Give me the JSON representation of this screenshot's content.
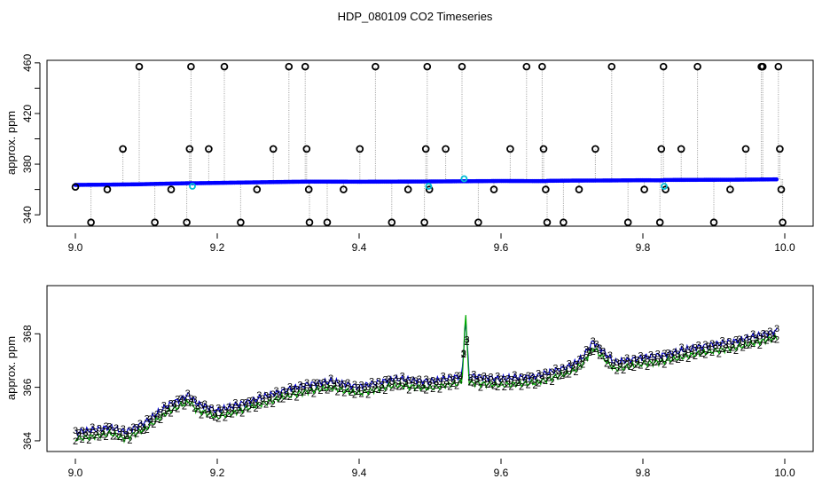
{
  "figure": {
    "title": "HDP_080109  CO2 Timeseries"
  },
  "chart_data": [
    {
      "type": "scatter",
      "panel": "top",
      "xlabel": "",
      "ylabel": "approx. ppm",
      "xlim": [
        8.96,
        10.04
      ],
      "ylim": [
        331,
        462
      ],
      "xticks": [
        9.0,
        9.2,
        9.4,
        9.6,
        9.8,
        10.0
      ],
      "xticklabels": [
        "9.0",
        "9.2",
        "9.4",
        "9.6",
        "9.8",
        "10.0"
      ],
      "yticks": [
        340,
        360,
        380,
        400,
        420,
        440,
        460
      ],
      "yticklabels": [
        "340",
        "",
        "380",
        "",
        "420",
        "",
        "460"
      ],
      "grid": false,
      "base_series": {
        "name": "",
        "color": "#0000ff",
        "marker": "dot",
        "segments": [
          {
            "x": [
              9.0,
              9.045,
              9.09,
              9.13,
              9.155,
              9.163
            ],
            "y": [
              363.6,
              363.8,
              364.1,
              364.6,
              364.9,
              365.0
            ]
          },
          {
            "x": [
              9.165,
              9.2,
              9.25,
              9.3,
              9.328
            ],
            "y": [
              364.9,
              365.2,
              365.6,
              366.0,
              366.2
            ]
          },
          {
            "x": [
              9.33,
              9.4,
              9.45,
              9.5,
              9.55,
              9.6,
              9.663
            ],
            "y": [
              366.2,
              366.1,
              366.2,
              366.3,
              366.5,
              366.7,
              366.6
            ]
          },
          {
            "x": [
              9.665,
              9.7,
              9.75,
              9.8,
              9.828
            ],
            "y": [
              366.8,
              367.0,
              367.1,
              367.3,
              367.2
            ]
          },
          {
            "x": [
              9.83,
              9.88,
              9.93,
              9.99
            ],
            "y": [
              367.5,
              367.6,
              367.7,
              368.0
            ]
          }
        ]
      },
      "highlight_points": {
        "color": "#00bcd4",
        "x": [
          9.165,
          9.498,
          9.548,
          9.83
        ],
        "y": [
          362.5,
          362.5,
          368.5,
          362.5
        ]
      },
      "outliers": {
        "marker": "circle",
        "color": "#000000",
        "x": [
          9.0,
          9.022,
          9.045,
          9.067,
          9.09,
          9.112,
          9.135,
          9.157,
          9.161,
          9.163,
          9.188,
          9.21,
          9.233,
          9.256,
          9.279,
          9.301,
          9.324,
          9.326,
          9.329,
          9.33,
          9.355,
          9.378,
          9.401,
          9.423,
          9.446,
          9.469,
          9.492,
          9.494,
          9.496,
          9.499,
          9.522,
          9.545,
          9.568,
          9.59,
          9.613,
          9.636,
          9.658,
          9.66,
          9.663,
          9.665,
          9.688,
          9.71,
          9.733,
          9.756,
          9.779,
          9.802,
          9.824,
          9.826,
          9.829,
          9.832,
          9.854,
          9.877,
          9.9,
          9.923,
          9.945,
          9.967,
          9.969,
          9.991,
          9.993,
          9.995,
          9.997
        ],
        "y": [
          362,
          334,
          360,
          392,
          457,
          334,
          360,
          334,
          392,
          457,
          392,
          457,
          334,
          360,
          392,
          457,
          457,
          392,
          360,
          334,
          334,
          360,
          392,
          457,
          334,
          360,
          334,
          392,
          457,
          360,
          392,
          457,
          334,
          360,
          392,
          457,
          457,
          392,
          360,
          334,
          334,
          360,
          392,
          457,
          334,
          360,
          334,
          392,
          457,
          360,
          392,
          457,
          334,
          360,
          392,
          457,
          457,
          457,
          392,
          360,
          334
        ]
      }
    },
    {
      "type": "line",
      "panel": "bottom",
      "xlabel": "",
      "ylabel": "approx. ppm",
      "xlim": [
        8.96,
        10.04
      ],
      "ylim": [
        363.6,
        369.8
      ],
      "xticks": [
        9.0,
        9.2,
        9.4,
        9.6,
        9.8,
        10.0
      ],
      "xticklabels": [
        "9.0",
        "9.2",
        "9.4",
        "9.6",
        "9.8",
        "10.0"
      ],
      "yticks": [
        364,
        366,
        368
      ],
      "yticklabels": [
        "364",
        "366",
        "368"
      ],
      "grid": false,
      "x_end": 9.99,
      "series": [
        {
          "name": "",
          "symbol": "3",
          "color": "#0000cc",
          "offset": 0.12,
          "knots": {
            "x": [
              9.0,
              9.03,
              9.05,
              9.07,
              9.1,
              9.13,
              9.16,
              9.17,
              9.2,
              9.25,
              9.3,
              9.33,
              9.36,
              9.4,
              9.45,
              9.5,
              9.545,
              9.55,
              9.555,
              9.6,
              9.65,
              9.7,
              9.715,
              9.73,
              9.76,
              9.8,
              9.83,
              9.88,
              9.93,
              9.99
            ],
            "y": [
              364.2,
              364.3,
              364.4,
              364.2,
              364.6,
              365.2,
              365.6,
              365.3,
              365.0,
              365.4,
              365.8,
              366.0,
              366.1,
              365.9,
              366.2,
              366.1,
              366.3,
              368.5,
              366.3,
              366.2,
              366.3,
              366.7,
              367.0,
              367.6,
              366.8,
              367.0,
              367.1,
              367.4,
              367.6,
              368.0
            ]
          }
        },
        {
          "name": "",
          "symbol": "2",
          "color": "#00aa00",
          "offset": -0.12,
          "knots": {
            "x": [
              9.0,
              9.03,
              9.05,
              9.07,
              9.1,
              9.13,
              9.16,
              9.17,
              9.2,
              9.25,
              9.3,
              9.33,
              9.36,
              9.4,
              9.45,
              9.5,
              9.545,
              9.55,
              9.555,
              9.6,
              9.65,
              9.7,
              9.715,
              9.73,
              9.76,
              9.8,
              9.83,
              9.88,
              9.93,
              9.99
            ],
            "y": [
              364.2,
              364.3,
              364.4,
              364.2,
              364.6,
              365.2,
              365.6,
              365.3,
              365.0,
              365.4,
              365.8,
              366.0,
              366.1,
              365.9,
              366.2,
              366.1,
              366.3,
              368.9,
              366.3,
              366.2,
              366.3,
              366.7,
              367.0,
              367.6,
              366.8,
              367.0,
              367.1,
              367.4,
              367.6,
              368.0
            ]
          }
        }
      ]
    }
  ]
}
